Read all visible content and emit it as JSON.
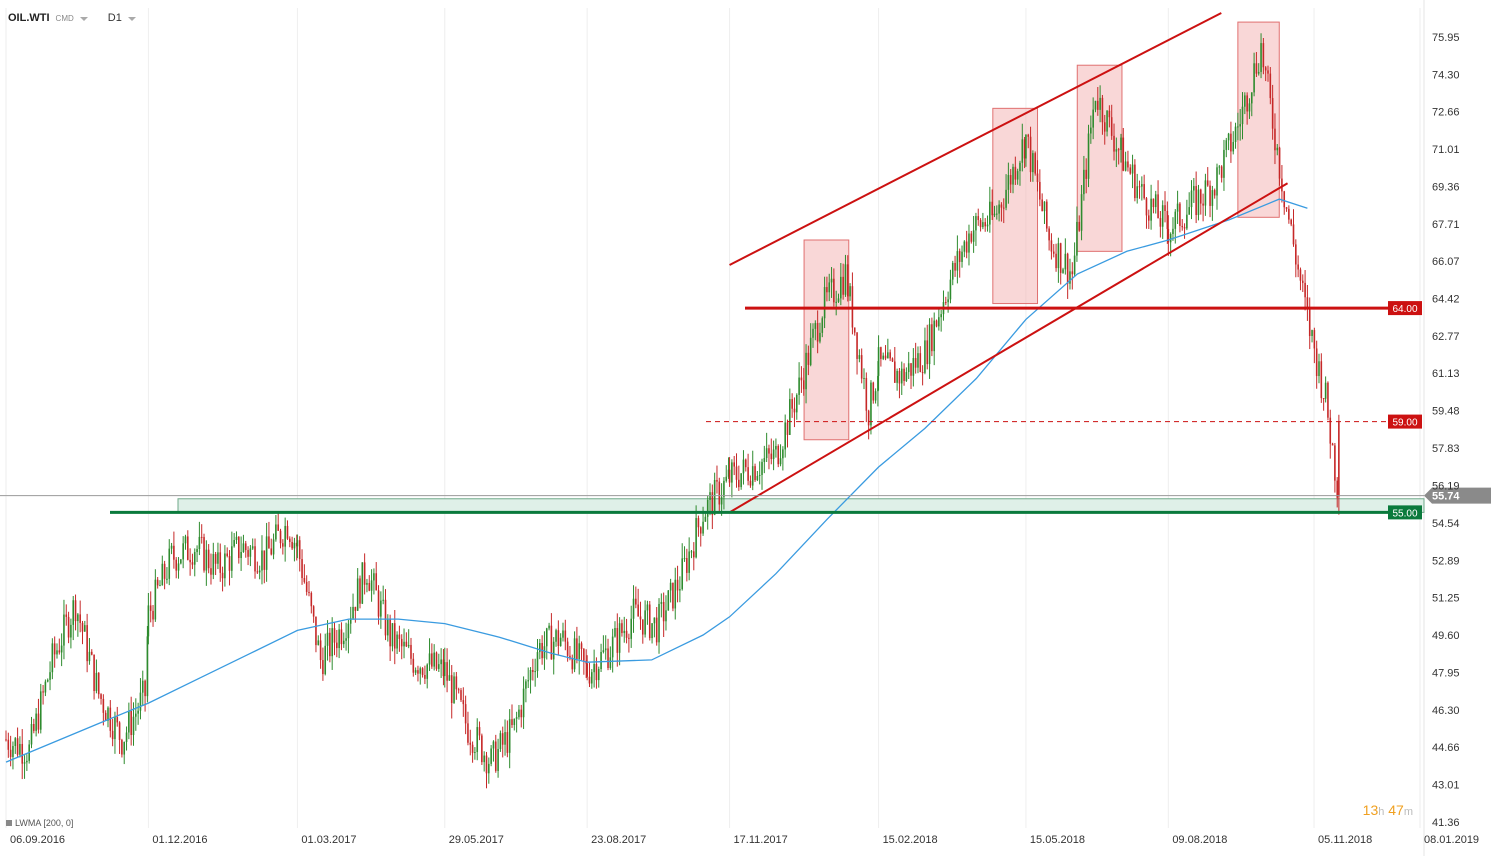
{
  "header": {
    "symbol": "OIL.WTI",
    "exchange": "CMD",
    "timeframe": "D1"
  },
  "timer": {
    "hours": "13",
    "h_unit": "h",
    "minutes": "47",
    "m_unit": "m"
  },
  "indicator_label": "LWMA [200, 0]",
  "colors": {
    "up": "#2e8b2e",
    "down": "#c62828",
    "ma": "#3a9be0",
    "level_red": "#cc1111",
    "level_green": "#0a7a3c",
    "zone_fill": "#dff0e8",
    "box_fill": "#f4b6b6"
  },
  "chart_data": {
    "type": "candlestick",
    "price_axis_ticks": [
      "75.95",
      "74.30",
      "72.66",
      "71.01",
      "69.36",
      "67.71",
      "66.07",
      "64.42",
      "62.77",
      "61.13",
      "59.48",
      "57.83",
      "56.19",
      "54.54",
      "52.89",
      "51.25",
      "49.60",
      "47.95",
      "46.30",
      "44.66",
      "43.01",
      "41.36"
    ],
    "date_axis_ticks": [
      "06.09.2016",
      "01.12.2016",
      "01.03.2017",
      "29.05.2017",
      "23.08.2017",
      "17.11.2017",
      "15.02.2018",
      "15.05.2018",
      "09.08.2018",
      "05.11.2018",
      "08.01.2019"
    ],
    "ylim": [
      41.36,
      76.78
    ],
    "horizontal_levels": [
      {
        "value": 64.0,
        "label": "64.00",
        "style": "solid",
        "color": "red"
      },
      {
        "value": 59.0,
        "label": "59.00",
        "style": "dashed",
        "color": "red"
      },
      {
        "value": 55.0,
        "label": "55.00",
        "style": "solid",
        "color": "green"
      }
    ],
    "current_price": {
      "value": 55.74,
      "label": "55.74"
    },
    "support_zone": [
      55.0,
      55.6
    ],
    "channel": {
      "upper": {
        "from": [
          "17.11.2017",
          65.9
        ],
        "to": [
          "10.09.2018",
          77.0
        ]
      },
      "lower": {
        "from": [
          "17.11.2017",
          55.0
        ],
        "to": [
          "20.10.2018",
          69.5
        ]
      }
    },
    "highlight_boxes": [
      {
        "from_date": "01.01.2018",
        "to_date": "28.01.2018",
        "high": 67.0,
        "low": 58.2
      },
      {
        "from_date": "25.04.2018",
        "to_date": "22.05.2018",
        "high": 72.8,
        "low": 64.2
      },
      {
        "from_date": "15.06.2018",
        "to_date": "12.07.2018",
        "high": 74.7,
        "low": 66.5
      },
      {
        "from_date": "20.09.2018",
        "to_date": "15.10.2018",
        "high": 76.6,
        "low": 68.0
      }
    ],
    "closes": [
      {
        "x": "06.09.2016",
        "y": 45.0
      },
      {
        "x": "20.09.2016",
        "y": 44.5
      },
      {
        "x": "04.10.2016",
        "y": 48.5
      },
      {
        "x": "18.10.2016",
        "y": 51.0
      },
      {
        "x": "01.11.2016",
        "y": 47.0
      },
      {
        "x": "15.11.2016",
        "y": 45.0
      },
      {
        "x": "29.11.2016",
        "y": 47.0
      },
      {
        "x": "01.12.2016",
        "y": 50.5
      },
      {
        "x": "15.12.2016",
        "y": 53.0
      },
      {
        "x": "29.12.2016",
        "y": 53.5
      },
      {
        "x": "12.01.2017",
        "y": 52.5
      },
      {
        "x": "26.01.2017",
        "y": 53.5
      },
      {
        "x": "09.02.2017",
        "y": 53.0
      },
      {
        "x": "23.02.2017",
        "y": 54.5
      },
      {
        "x": "01.03.2017",
        "y": 53.5
      },
      {
        "x": "15.03.2017",
        "y": 48.5
      },
      {
        "x": "29.03.2017",
        "y": 50.0
      },
      {
        "x": "12.04.2017",
        "y": 52.5
      },
      {
        "x": "26.04.2017",
        "y": 49.5
      },
      {
        "x": "10.05.2017",
        "y": 48.5
      },
      {
        "x": "29.05.2017",
        "y": 48.0
      },
      {
        "x": "12.06.2017",
        "y": 45.5
      },
      {
        "x": "26.06.2017",
        "y": 44.0
      },
      {
        "x": "10.07.2017",
        "y": 45.5
      },
      {
        "x": "24.07.2017",
        "y": 49.0
      },
      {
        "x": "07.08.2017",
        "y": 49.5
      },
      {
        "x": "23.08.2017",
        "y": 48.0
      },
      {
        "x": "06.09.2017",
        "y": 49.0
      },
      {
        "x": "20.09.2017",
        "y": 50.5
      },
      {
        "x": "04.10.2017",
        "y": 50.0
      },
      {
        "x": "18.10.2017",
        "y": 52.0
      },
      {
        "x": "01.11.2017",
        "y": 55.0
      },
      {
        "x": "17.11.2017",
        "y": 56.5
      },
      {
        "x": "01.12.2017",
        "y": 57.0
      },
      {
        "x": "15.12.2017",
        "y": 57.5
      },
      {
        "x": "29.12.2017",
        "y": 60.5
      },
      {
        "x": "12.01.2018",
        "y": 64.0
      },
      {
        "x": "26.01.2018",
        "y": 65.5
      },
      {
        "x": "09.02.2018",
        "y": 59.5
      },
      {
        "x": "15.02.2018",
        "y": 61.5
      },
      {
        "x": "01.03.2018",
        "y": 61.0
      },
      {
        "x": "15.03.2018",
        "y": 62.0
      },
      {
        "x": "29.03.2018",
        "y": 65.0
      },
      {
        "x": "12.04.2018",
        "y": 67.5
      },
      {
        "x": "26.04.2018",
        "y": 68.0
      },
      {
        "x": "15.05.2018",
        "y": 71.5
      },
      {
        "x": "29.05.2018",
        "y": 67.0
      },
      {
        "x": "12.06.2018",
        "y": 65.5
      },
      {
        "x": "26.06.2018",
        "y": 73.5
      },
      {
        "x": "10.07.2018",
        "y": 71.0
      },
      {
        "x": "24.07.2018",
        "y": 69.0
      },
      {
        "x": "09.08.2018",
        "y": 67.5
      },
      {
        "x": "23.08.2018",
        "y": 68.5
      },
      {
        "x": "06.09.2018",
        "y": 69.5
      },
      {
        "x": "20.09.2018",
        "y": 72.0
      },
      {
        "x": "04.10.2018",
        "y": 75.5
      },
      {
        "x": "18.10.2018",
        "y": 69.0
      },
      {
        "x": "01.11.2018",
        "y": 63.5
      },
      {
        "x": "12.11.2018",
        "y": 60.0
      },
      {
        "x": "20.11.2018",
        "y": 55.7
      }
    ],
    "lwma_200": [
      {
        "x": "06.09.2016",
        "y": 44.0
      },
      {
        "x": "01.11.2016",
        "y": 45.7
      },
      {
        "x": "01.12.2016",
        "y": 46.6
      },
      {
        "x": "01.01.2017",
        "y": 47.7
      },
      {
        "x": "01.02.2017",
        "y": 48.8
      },
      {
        "x": "01.03.2017",
        "y": 49.8
      },
      {
        "x": "01.04.2017",
        "y": 50.3
      },
      {
        "x": "01.05.2017",
        "y": 50.3
      },
      {
        "x": "29.05.2017",
        "y": 50.1
      },
      {
        "x": "01.07.2017",
        "y": 49.5
      },
      {
        "x": "01.08.2017",
        "y": 48.8
      },
      {
        "x": "23.08.2017",
        "y": 48.4
      },
      {
        "x": "01.10.2017",
        "y": 48.5
      },
      {
        "x": "01.11.2017",
        "y": 49.6
      },
      {
        "x": "17.11.2017",
        "y": 50.4
      },
      {
        "x": "15.12.2017",
        "y": 52.3
      },
      {
        "x": "15.01.2018",
        "y": 54.7
      },
      {
        "x": "15.02.2018",
        "y": 57.0
      },
      {
        "x": "15.03.2018",
        "y": 58.7
      },
      {
        "x": "15.04.2018",
        "y": 60.9
      },
      {
        "x": "15.05.2018",
        "y": 63.5
      },
      {
        "x": "15.06.2018",
        "y": 65.5
      },
      {
        "x": "15.07.2018",
        "y": 66.5
      },
      {
        "x": "09.08.2018",
        "y": 67.0
      },
      {
        "x": "15.09.2018",
        "y": 67.9
      },
      {
        "x": "15.10.2018",
        "y": 68.8
      },
      {
        "x": "01.11.2018",
        "y": 68.4
      }
    ]
  }
}
